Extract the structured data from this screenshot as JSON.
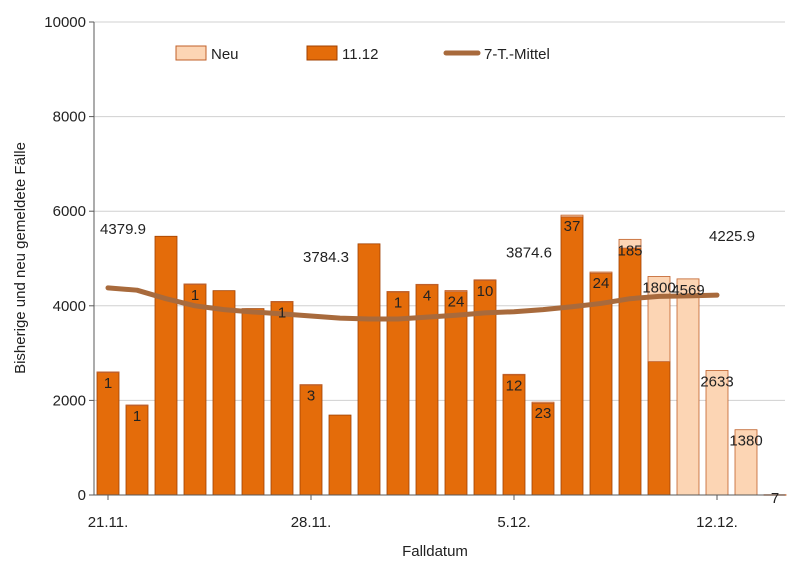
{
  "chart_data": {
    "type": "bar",
    "xlabel": "Falldatum",
    "ylabel": "Bisherige und neu gemeldete Fälle",
    "ylim": [
      0,
      10000
    ],
    "yticks": [
      0,
      2000,
      4000,
      6000,
      8000,
      10000
    ],
    "grid": true,
    "legend_position": "top",
    "stacked": true,
    "x_tick_labels": [
      {
        "index": 0,
        "label": "21.11."
      },
      {
        "index": 7,
        "label": "28.11."
      },
      {
        "index": 14,
        "label": "5.12."
      },
      {
        "index": 21,
        "label": "12.12."
      }
    ],
    "series": [
      {
        "name": "11.12",
        "color": "#E46C0A",
        "values": [
          2600,
          1900,
          5470,
          4460,
          4320,
          3940,
          4090,
          2330,
          1690,
          5310,
          4300,
          4450,
          4300,
          4540,
          2540,
          1940,
          5880,
          4690,
          5220,
          2820,
          0,
          0,
          0,
          0
        ]
      },
      {
        "name": "Neu",
        "color": "#FCD5B4",
        "values": [
          1,
          1,
          0,
          1,
          0,
          0,
          1,
          3,
          0,
          0,
          1,
          4,
          24,
          10,
          12,
          23,
          37,
          24,
          185,
          1800,
          4569,
          2633,
          1380,
          7
        ]
      },
      {
        "name": "7-T.-Mittel",
        "type": "line",
        "color": "#A86A3C",
        "values": [
          4379.9,
          4330,
          4150,
          4000,
          3920,
          3870,
          3830,
          3784.3,
          3740,
          3720,
          3720,
          3760,
          3800,
          3850,
          3874.6,
          3920,
          3980,
          4050,
          4150,
          4200,
          4210,
          4225.9
        ]
      }
    ],
    "bar_labels": [
      {
        "index": 0,
        "text": "1"
      },
      {
        "index": 1,
        "text": "1"
      },
      {
        "index": 3,
        "text": "1"
      },
      {
        "index": 6,
        "text": "1"
      },
      {
        "index": 7,
        "text": "3"
      },
      {
        "index": 10,
        "text": "1"
      },
      {
        "index": 11,
        "text": "4"
      },
      {
        "index": 12,
        "text": "24"
      },
      {
        "index": 13,
        "text": "10"
      },
      {
        "index": 14,
        "text": "12"
      },
      {
        "index": 15,
        "text": "23"
      },
      {
        "index": 16,
        "text": "37"
      },
      {
        "index": 17,
        "text": "24"
      },
      {
        "index": 18,
        "text": "185"
      },
      {
        "index": 19,
        "text": "1800"
      },
      {
        "index": 20,
        "text": "4569"
      },
      {
        "index": 21,
        "text": "2633"
      },
      {
        "index": 22,
        "text": "1380"
      },
      {
        "index": 23,
        "text": "7"
      }
    ],
    "line_labels": [
      {
        "index": 0,
        "text": "4379.9",
        "value": 4379.9
      },
      {
        "index": 7,
        "text": "3784.3",
        "value": 3784.3
      },
      {
        "index": 14,
        "text": "3874.6",
        "value": 3874.6
      },
      {
        "index": 21,
        "text": "4225.9",
        "value": 4225.9
      }
    ]
  }
}
